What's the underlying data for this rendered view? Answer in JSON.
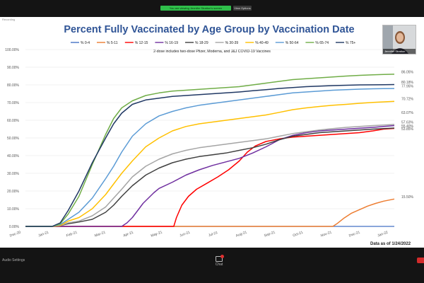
{
  "meeting": {
    "share_banner": "You are viewing Jennifer Stratton's screen",
    "stop_share_label": "View Options",
    "recording_label": "Recording",
    "participant_name": "Jennifer Stratton",
    "settings_label": "Audio Settings",
    "chat_label": "Chat",
    "colors": {
      "toolbar_bg": "#141414",
      "share_green": "#2fbf4a",
      "leave_red": "#d32b2b"
    }
  },
  "chart_data": {
    "type": "line",
    "title": "Percent Fully Vaccinated by Age Group by Vaccination Date",
    "subtitle": "2-dose includes two-dose Pfizer, Moderna, and J&J COVID-19 Vaccines",
    "footnote": "Data as of 1/24/2022",
    "x_tick_labels": [
      "Dec-20",
      "Jan-21",
      "Feb-21",
      "Mar-21",
      "Apr-21",
      "May-21",
      "Jun-21",
      "Jul-21",
      "Aug-21",
      "Sep-21",
      "Oct-21",
      "Nov-21",
      "Dec-21",
      "Jan-22"
    ],
    "y_tick_labels": [
      "0.00%",
      "10.00%",
      "20.00%",
      "30.00%",
      "40.00%",
      "50.00%",
      "60.00%",
      "70.00%",
      "80.00%",
      "90.00%",
      "100.00%"
    ],
    "ylim": [
      0,
      100
    ],
    "grid": "horizontal",
    "legend_position": "top",
    "series": [
      {
        "name": "% 0-4",
        "color": "#4472c4",
        "end_label": "",
        "points": [
          [
            0,
            0
          ],
          [
            13.8,
            0
          ]
        ]
      },
      {
        "name": "% 5-11",
        "color": "#ed7d31",
        "end_label": "15.50%",
        "points": [
          [
            0,
            0
          ],
          [
            11.5,
            0
          ],
          [
            11.65,
            1.5
          ],
          [
            11.9,
            4.5
          ],
          [
            12.2,
            7.5
          ],
          [
            12.5,
            9.5
          ],
          [
            12.8,
            11.5
          ],
          [
            13.1,
            13
          ],
          [
            13.4,
            14.3
          ],
          [
            13.8,
            15.5
          ]
        ]
      },
      {
        "name": "% 12-15",
        "color": "#ff0000",
        "end_label": "55.40%",
        "points": [
          [
            0,
            0
          ],
          [
            5.55,
            0
          ],
          [
            5.65,
            5
          ],
          [
            5.85,
            12
          ],
          [
            6.1,
            17
          ],
          [
            6.4,
            21
          ],
          [
            6.8,
            24.5
          ],
          [
            7.2,
            28
          ],
          [
            7.6,
            32
          ],
          [
            8,
            37
          ],
          [
            8.3,
            42
          ],
          [
            8.6,
            45.5
          ],
          [
            9,
            48
          ],
          [
            9.5,
            49.5
          ],
          [
            10,
            50.5
          ],
          [
            10.5,
            51
          ],
          [
            11,
            51.5
          ],
          [
            11.5,
            52
          ],
          [
            12,
            52.5
          ],
          [
            12.5,
            53
          ],
          [
            13,
            54
          ],
          [
            13.4,
            55
          ],
          [
            13.8,
            55.4
          ]
        ]
      },
      {
        "name": "% 16-19",
        "color": "#7030a0",
        "end_label": "",
        "points": [
          [
            0,
            0
          ],
          [
            3.6,
            0
          ],
          [
            3.8,
            2
          ],
          [
            4,
            5
          ],
          [
            4.2,
            9
          ],
          [
            4.4,
            13
          ],
          [
            4.6,
            16
          ],
          [
            4.8,
            19
          ],
          [
            5,
            21.5
          ],
          [
            5.5,
            25
          ],
          [
            6,
            29
          ],
          [
            6.5,
            32
          ],
          [
            7,
            34.5
          ],
          [
            7.5,
            36.5
          ],
          [
            8,
            38.5
          ],
          [
            8.5,
            41.5
          ],
          [
            9,
            45
          ],
          [
            9.5,
            49
          ],
          [
            10,
            51.5
          ],
          [
            10.5,
            53
          ],
          [
            11,
            54
          ],
          [
            11.5,
            54.5
          ],
          [
            12,
            55
          ],
          [
            12.5,
            55.5
          ],
          [
            13,
            56
          ],
          [
            13.4,
            56.5
          ],
          [
            13.8,
            57
          ]
        ]
      },
      {
        "name": "% 18-29",
        "color": "#404040",
        "end_label": "",
        "points": [
          [
            0,
            0
          ],
          [
            1,
            0
          ],
          [
            1.3,
            0.5
          ],
          [
            1.6,
            1.5
          ],
          [
            2,
            2.5
          ],
          [
            2.5,
            4
          ],
          [
            3,
            8
          ],
          [
            3.3,
            12
          ],
          [
            3.6,
            17
          ],
          [
            4,
            23
          ],
          [
            4.5,
            29
          ],
          [
            5,
            33
          ],
          [
            5.5,
            36
          ],
          [
            6,
            38
          ],
          [
            6.5,
            39.5
          ],
          [
            7,
            40.5
          ],
          [
            7.5,
            41.5
          ],
          [
            8,
            43
          ],
          [
            8.5,
            44.5
          ],
          [
            9,
            46.5
          ],
          [
            9.5,
            49
          ],
          [
            10,
            51
          ],
          [
            10.5,
            52
          ],
          [
            11,
            53
          ],
          [
            11.5,
            53.5
          ],
          [
            12,
            54
          ],
          [
            12.5,
            54.5
          ],
          [
            13,
            55
          ],
          [
            13.4,
            55.3
          ],
          [
            13.8,
            55.6
          ]
        ]
      },
      {
        "name": "% 30-39",
        "color": "#a5a5a5",
        "end_label": "57.63%",
        "points": [
          [
            0,
            0
          ],
          [
            1,
            0
          ],
          [
            1.3,
            0.5
          ],
          [
            1.6,
            2
          ],
          [
            2,
            3
          ],
          [
            2.5,
            6
          ],
          [
            3,
            11
          ],
          [
            3.3,
            16
          ],
          [
            3.6,
            21
          ],
          [
            4,
            28
          ],
          [
            4.5,
            34
          ],
          [
            5,
            38
          ],
          [
            5.5,
            41
          ],
          [
            6,
            43
          ],
          [
            6.5,
            44.5
          ],
          [
            7,
            45.5
          ],
          [
            7.5,
            46.5
          ],
          [
            8,
            47.5
          ],
          [
            8.5,
            48.5
          ],
          [
            9,
            49.5
          ],
          [
            9.5,
            51
          ],
          [
            10,
            52.5
          ],
          [
            10.5,
            53.5
          ],
          [
            11,
            54.5
          ],
          [
            11.5,
            55.3
          ],
          [
            12,
            56
          ],
          [
            12.5,
            56.5
          ],
          [
            13,
            57
          ],
          [
            13.4,
            57.3
          ],
          [
            13.8,
            57.63
          ]
        ]
      },
      {
        "name": "% 40-49",
        "color": "#ffc000",
        "end_label": "70.72%",
        "points": [
          [
            0,
            0
          ],
          [
            1,
            0
          ],
          [
            1.3,
            0.5
          ],
          [
            1.6,
            3
          ],
          [
            2,
            5
          ],
          [
            2.5,
            10
          ],
          [
            3,
            18
          ],
          [
            3.3,
            24
          ],
          [
            3.6,
            30
          ],
          [
            4,
            37
          ],
          [
            4.5,
            45
          ],
          [
            5,
            50
          ],
          [
            5.5,
            54
          ],
          [
            6,
            56.5
          ],
          [
            6.5,
            58
          ],
          [
            7,
            59
          ],
          [
            7.5,
            60
          ],
          [
            8,
            61
          ],
          [
            8.5,
            62
          ],
          [
            9,
            63
          ],
          [
            9.5,
            64.5
          ],
          [
            10,
            66
          ],
          [
            10.5,
            67
          ],
          [
            11,
            67.8
          ],
          [
            11.5,
            68.5
          ],
          [
            12,
            69
          ],
          [
            12.5,
            69.6
          ],
          [
            13,
            70.1
          ],
          [
            13.4,
            70.4
          ],
          [
            13.8,
            70.72
          ]
        ]
      },
      {
        "name": "% 50-64",
        "color": "#5b9bd5",
        "end_label": "77.95%",
        "points": [
          [
            0,
            0
          ],
          [
            1,
            0
          ],
          [
            1.3,
            1
          ],
          [
            1.6,
            4
          ],
          [
            2,
            8
          ],
          [
            2.5,
            16
          ],
          [
            3,
            27
          ],
          [
            3.3,
            34
          ],
          [
            3.6,
            42
          ],
          [
            4,
            51
          ],
          [
            4.5,
            58
          ],
          [
            5,
            62.5
          ],
          [
            5.5,
            65
          ],
          [
            6,
            67
          ],
          [
            6.5,
            68.5
          ],
          [
            7,
            69.5
          ],
          [
            7.5,
            70.5
          ],
          [
            8,
            71.5
          ],
          [
            8.5,
            72.5
          ],
          [
            9,
            73.5
          ],
          [
            9.5,
            74.5
          ],
          [
            10,
            75.5
          ],
          [
            10.5,
            76
          ],
          [
            11,
            76.5
          ],
          [
            11.5,
            77
          ],
          [
            12,
            77.3
          ],
          [
            12.5,
            77.6
          ],
          [
            13,
            77.8
          ],
          [
            13.4,
            77.9
          ],
          [
            13.8,
            77.95
          ]
        ]
      },
      {
        "name": "% 65-74",
        "color": "#70ad47",
        "end_label": "86.05%",
        "points": [
          [
            0,
            0
          ],
          [
            1,
            0
          ],
          [
            1.3,
            1.5
          ],
          [
            1.6,
            7
          ],
          [
            2,
            17
          ],
          [
            2.5,
            35
          ],
          [
            3,
            52
          ],
          [
            3.3,
            61
          ],
          [
            3.6,
            67
          ],
          [
            4,
            71
          ],
          [
            4.5,
            74
          ],
          [
            5,
            75.5
          ],
          [
            5.5,
            76.5
          ],
          [
            6,
            77
          ],
          [
            6.5,
            77.5
          ],
          [
            7,
            78
          ],
          [
            7.5,
            78.5
          ],
          [
            8,
            79
          ],
          [
            8.5,
            80
          ],
          [
            9,
            81
          ],
          [
            9.5,
            82
          ],
          [
            10,
            83
          ],
          [
            10.5,
            83.5
          ],
          [
            11,
            84
          ],
          [
            11.5,
            84.5
          ],
          [
            12,
            85
          ],
          [
            12.5,
            85.4
          ],
          [
            13,
            85.7
          ],
          [
            13.4,
            85.9
          ],
          [
            13.8,
            86.05
          ]
        ]
      },
      {
        "name": "% 75+",
        "color": "#203864",
        "end_label": "80.18%",
        "points": [
          [
            0,
            0
          ],
          [
            1,
            0
          ],
          [
            1.3,
            2
          ],
          [
            1.6,
            9
          ],
          [
            2,
            20
          ],
          [
            2.5,
            36
          ],
          [
            3,
            50
          ],
          [
            3.3,
            58
          ],
          [
            3.6,
            64
          ],
          [
            4,
            69
          ],
          [
            4.5,
            71.5
          ],
          [
            5,
            72.5
          ],
          [
            5.5,
            73.5
          ],
          [
            6,
            74
          ],
          [
            6.5,
            74.5
          ],
          [
            7,
            75
          ],
          [
            7.5,
            75.5
          ],
          [
            8,
            76
          ],
          [
            8.5,
            76.7
          ],
          [
            9,
            77.3
          ],
          [
            9.5,
            78
          ],
          [
            10,
            78.5
          ],
          [
            10.5,
            79
          ],
          [
            11,
            79.3
          ],
          [
            11.5,
            79.6
          ],
          [
            12,
            79.8
          ],
          [
            12.5,
            80
          ],
          [
            13,
            80.05
          ],
          [
            13.4,
            80.1
          ],
          [
            13.8,
            80.18
          ]
        ]
      }
    ],
    "extra_end_labels": [
      {
        "label": "63.07%",
        "value": 63.07
      },
      {
        "label": "53.85%",
        "value": 53.85
      }
    ]
  }
}
